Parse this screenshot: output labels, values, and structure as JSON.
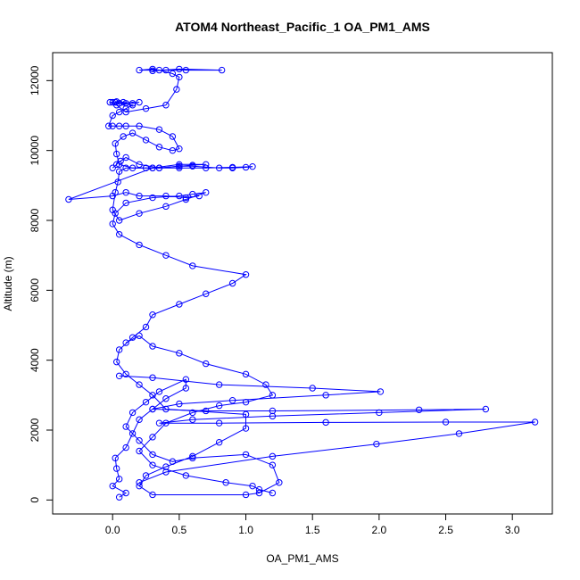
{
  "chart_data": {
    "type": "scatter",
    "title": "ATOM4 Northeast_Pacific_1 OA_PM1_AMS",
    "xlabel": "OA_PM1_AMS",
    "ylabel": "Altitude (m)",
    "xlim": [
      -0.45,
      3.3
    ],
    "ylim": [
      -400,
      12800
    ],
    "x_ticks": [
      0.0,
      0.5,
      1.0,
      1.5,
      2.0,
      2.5,
      3.0
    ],
    "x_tick_labels": [
      "0.0",
      "0.5",
      "1.0",
      "1.5",
      "2.0",
      "2.5",
      "3.0"
    ],
    "y_ticks": [
      0,
      2000,
      4000,
      6000,
      8000,
      10000,
      12000
    ],
    "y_tick_labels": [
      "0",
      "2000",
      "4000",
      "6000",
      "8000",
      "10000",
      "12000"
    ],
    "series_color": "#0000ff",
    "grid": false,
    "legend": "none",
    "series": [
      {
        "x": [
          0.05,
          0.1,
          0.0,
          0.05,
          0.03,
          0.02,
          0.1,
          0.15,
          0.2,
          0.3,
          0.4,
          0.55,
          0.55,
          0.35,
          0.25,
          0.15,
          0.1,
          0.2,
          0.3,
          0.45,
          0.6,
          1.0,
          1.2,
          1.25,
          1.1,
          1.0,
          0.3,
          0.2,
          0.25,
          0.4,
          0.6,
          0.8,
          1.0,
          1.0,
          0.4,
          0.3,
          0.2,
          0.1,
          0.03,
          0.05,
          0.15,
          0.25,
          0.3,
          0.5,
          0.7,
          0.9,
          1.0,
          0.6,
          0.4,
          0.2,
          0.05,
          0.0,
          0.02,
          0.1,
          0.3,
          0.5,
          0.6,
          0.7,
          0.55,
          0.4,
          0.2,
          0.05,
          0.0,
          0.02,
          0.04,
          0.05,
          0.1,
          0.25,
          0.35,
          0.5,
          0.6,
          0.7,
          0.5,
          0.3,
          -0.33,
          0.0,
          0.1,
          0.2,
          0.4,
          0.55,
          0.65
        ],
        "y": [
          80,
          200,
          400,
          600,
          900,
          1200,
          1500,
          1900,
          2300,
          2600,
          2900,
          3200,
          3450,
          3100,
          2800,
          2500,
          2100,
          1700,
          1300,
          1100,
          1200,
          1300,
          1000,
          500,
          200,
          150,
          150,
          400,
          700,
          950,
          1250,
          1650,
          2050,
          2450,
          2600,
          3000,
          3300,
          3600,
          3950,
          4300,
          4650,
          4950,
          5300,
          5600,
          5900,
          6200,
          6450,
          6700,
          7000,
          7300,
          7600,
          7900,
          8200,
          8500,
          8650,
          8700,
          8750,
          8800,
          8600,
          8400,
          8200,
          8000,
          8300,
          8800,
          9100,
          9400,
          9500,
          9500,
          9500,
          9550,
          9580,
          9600,
          9600,
          9500,
          8600,
          8700,
          8800,
          8700,
          8700,
          8650,
          8700
        ]
      },
      {
        "x": [
          0.0,
          0.03,
          0.06,
          0.1,
          0.2,
          0.35,
          0.5,
          0.6,
          0.8,
          0.9,
          1.0,
          1.05,
          0.9,
          0.7,
          0.5,
          0.3,
          0.15,
          0.05,
          0.03,
          0.02,
          0.08,
          0.15,
          0.25,
          0.35,
          0.45,
          0.5,
          0.45,
          0.35,
          0.2,
          0.1,
          0.05,
          0.0,
          -0.03,
          0.0,
          0.05,
          0.1,
          0.15,
          0.05,
          0.02,
          0.03,
          0.08,
          0.15,
          0.2,
          0.1,
          0.05,
          0.0,
          -0.02,
          0.03,
          0.1,
          0.25,
          0.4,
          0.48,
          0.5,
          0.45,
          0.35,
          0.3,
          0.2,
          0.4,
          0.55,
          0.82,
          0.5,
          0.3
        ],
        "y": [
          9500,
          9600,
          9700,
          9800,
          9600,
          9500,
          9550,
          9550,
          9500,
          9500,
          9520,
          9540,
          9520,
          9500,
          9500,
          9500,
          9500,
          9600,
          9900,
          10200,
          10400,
          10500,
          10300,
          10100,
          10000,
          10050,
          10400,
          10600,
          10700,
          10700,
          10700,
          10700,
          10700,
          11000,
          11100,
          11200,
          11300,
          11350,
          11380,
          11400,
          11380,
          11350,
          11380,
          11350,
          11350,
          11380,
          11380,
          11300,
          11100,
          11200,
          11300,
          11750,
          12100,
          12200,
          12300,
          12330,
          12300,
          12300,
          12300,
          12300,
          12330,
          12280
        ]
      },
      {
        "x": [
          0.1,
          0.2,
          0.3,
          0.5,
          0.7,
          1.0,
          1.15,
          1.2,
          1.0,
          0.8,
          0.6,
          0.4,
          0.3,
          0.2,
          0.3,
          0.55,
          0.85,
          1.05,
          1.1,
          1.2
        ],
        "y": [
          4500,
          4700,
          4400,
          4200,
          3900,
          3600,
          3300,
          3000,
          2800,
          2700,
          2500,
          2200,
          1800,
          1400,
          1000,
          700,
          500,
          400,
          300,
          200
        ]
      },
      {
        "x": [
          0.05,
          0.3,
          0.8,
          1.5,
          2.01,
          1.6,
          0.9,
          0.5,
          0.3,
          0.7,
          1.2,
          2.3,
          2.8,
          2.0,
          1.2,
          0.6,
          0.35,
          0.8,
          1.6,
          2.5,
          3.17,
          2.6,
          1.98,
          1.2,
          0.4,
          0.2
        ],
        "y": [
          3550,
          3500,
          3300,
          3200,
          3100,
          3000,
          2850,
          2750,
          2600,
          2550,
          2550,
          2580,
          2600,
          2500,
          2400,
          2300,
          2200,
          2200,
          2220,
          2230,
          2230,
          1900,
          1600,
          1250,
          800,
          500
        ]
      }
    ]
  }
}
